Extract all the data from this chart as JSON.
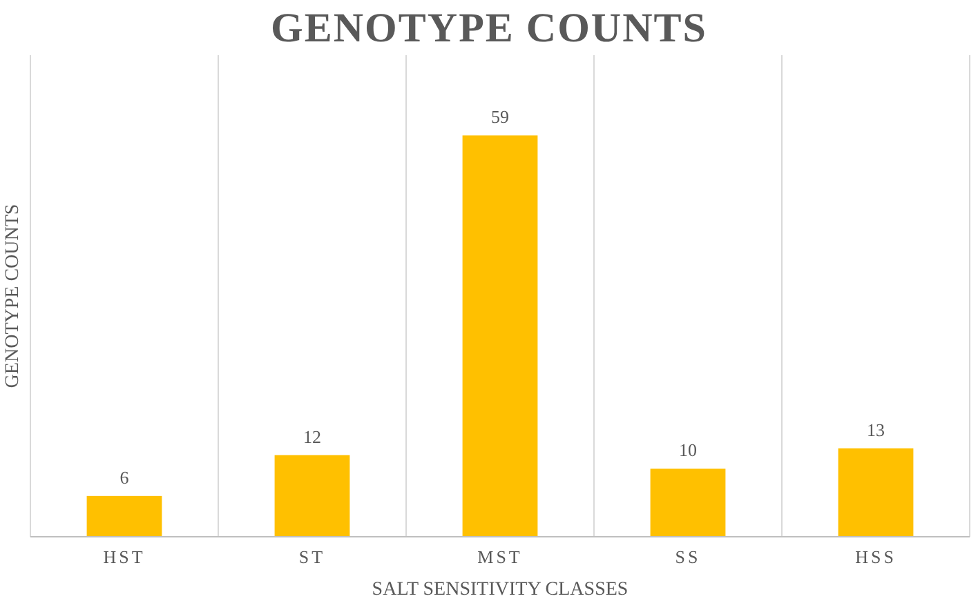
{
  "chart_data": {
    "type": "bar",
    "title": "GENOTYPE COUNTS",
    "xlabel": "SALT SENSITIVITY CLASSES",
    "ylabel": "GENOTYPE COUNTS",
    "categories": [
      "HST",
      "ST",
      "MST",
      "SS",
      "HSS"
    ],
    "values": [
      6,
      12,
      59,
      10,
      13
    ],
    "color": "#ffc000",
    "data_labels": true,
    "grid": "x"
  }
}
